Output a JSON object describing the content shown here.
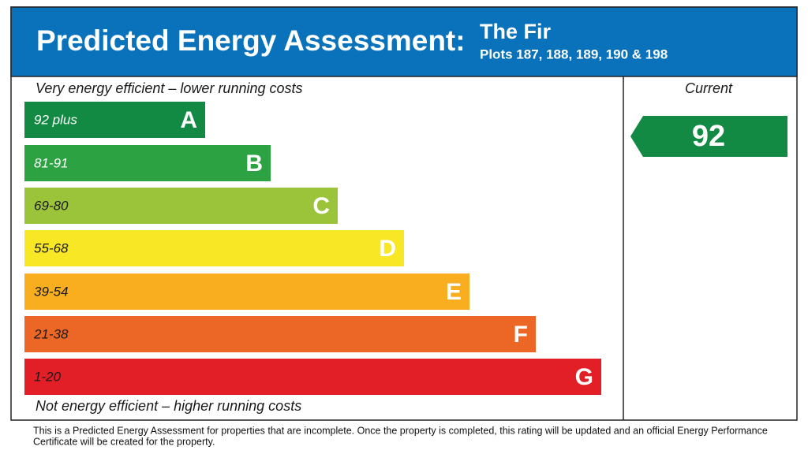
{
  "header": {
    "title": "Predicted Energy Assessment:",
    "property": "The Fir",
    "plots": "Plots 187, 188, 189, 190 & 198"
  },
  "top_note": "Very energy efficient – lower running costs",
  "bottom_note": "Not energy efficient – higher running costs",
  "bands": [
    {
      "range": "92 plus",
      "letter": "A"
    },
    {
      "range": "81-91",
      "letter": "B"
    },
    {
      "range": "69-80",
      "letter": "C"
    },
    {
      "range": "55-68",
      "letter": "D"
    },
    {
      "range": "39-54",
      "letter": "E"
    },
    {
      "range": "21-38",
      "letter": "F"
    },
    {
      "range": "1-20",
      "letter": "G"
    }
  ],
  "current": {
    "label": "Current",
    "rating": "92"
  },
  "footer": [
    "This is a Predicted Energy Assessment for properties that are incomplete. Once the property is completed, this rating will be updated and an official Energy Performance",
    "Certificate will be created for the property."
  ]
}
